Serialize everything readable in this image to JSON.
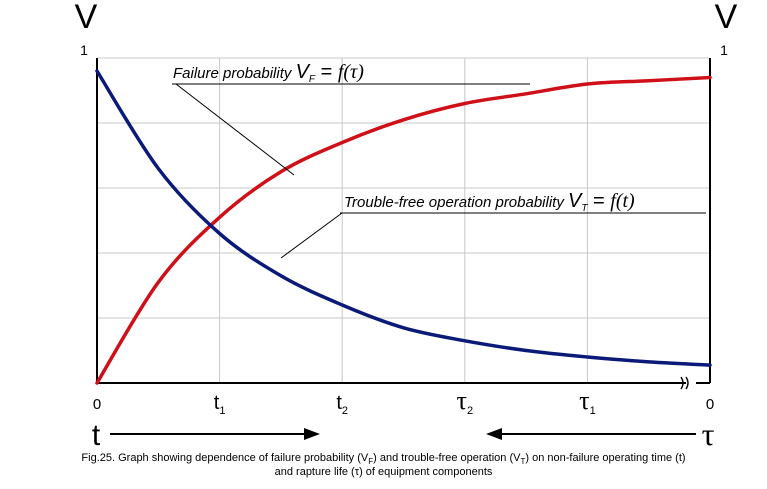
{
  "chart_data": {
    "type": "line",
    "left_axis_label": "V",
    "right_axis_label": "V",
    "left_top_tick": "1",
    "right_top_tick": "1",
    "bottom_ticks": [
      {
        "main": "0",
        "sub": ""
      },
      {
        "main": "t",
        "sub": "1"
      },
      {
        "main": "t",
        "sub": "2"
      },
      {
        "main": "τ",
        "sub": "2"
      },
      {
        "main": "τ",
        "sub": "1"
      },
      {
        "main": "0",
        "sub": ""
      }
    ],
    "ylim": [
      0,
      1
    ],
    "grid": true,
    "series": [
      {
        "label": {
          "prefix": "Failure probability",
          "V": "V",
          "sub": "F",
          "rest": " = ",
          "func": "f(τ)"
        },
        "color": "#d01018",
        "x": [
          0,
          0.5,
          1,
          1.5,
          2,
          2.5,
          3,
          3.5,
          4,
          4.5,
          5
        ],
        "values": [
          0.0,
          0.31,
          0.51,
          0.65,
          0.74,
          0.81,
          0.86,
          0.89,
          0.92,
          0.93,
          0.94
        ]
      },
      {
        "label": {
          "prefix": "Trouble-free operation probability",
          "V": "V",
          "sub": "T",
          "rest": " = ",
          "func": "f(t)"
        },
        "color": "#0b1a78",
        "x": [
          0,
          0.5,
          1,
          1.5,
          2,
          2.5,
          3,
          3.5,
          4,
          4.5,
          5
        ],
        "values": [
          0.96,
          0.66,
          0.46,
          0.33,
          0.24,
          0.17,
          0.13,
          0.1,
          0.08,
          0.065,
          0.055
        ]
      }
    ],
    "directions": {
      "left": "t",
      "right": "τ"
    }
  },
  "caption": {
    "l1_a": "Fig.25. Graph showing dependence of failure probability (V",
    "l1_sub1": "F",
    "l1_b": ") and trouble-free operation (V",
    "l1_sub2": "T",
    "l1_c": ") on non-failure operating time (t)",
    "l2": "and rapture life (τ) of equipment components"
  }
}
